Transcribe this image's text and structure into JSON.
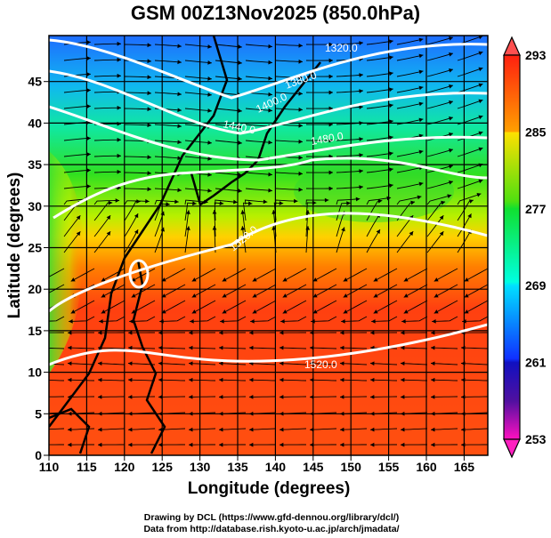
{
  "title": "GSM 00Z13Nov2025 (850.0hPa)",
  "x_axis": {
    "label": "Longitude (degrees)",
    "ticks": [
      "110",
      "115",
      "120",
      "125",
      "130",
      "135",
      "140",
      "145",
      "150",
      "155",
      "160",
      "165"
    ]
  },
  "y_axis": {
    "label": "Latitude  (degrees)",
    "ticks": [
      "0",
      "5",
      "10",
      "15",
      "20",
      "25",
      "30",
      "35",
      "40",
      "45"
    ]
  },
  "colorbar": {
    "ticks": [
      "293",
      "285",
      "277",
      "269",
      "261",
      "253"
    ],
    "min": 253,
    "max": 293,
    "colors": [
      "#ff10c0",
      "#7010a0",
      "#1010c0",
      "#1060ff",
      "#00e0ff",
      "#00f0b0",
      "#10e020",
      "#a0f000",
      "#ffe000",
      "#ff8000",
      "#ff2010"
    ]
  },
  "contour_labels": [
    "1320.0",
    "1380.0",
    "1400.0",
    "1440.0",
    "1480.0",
    "1520.0",
    "1520.0"
  ],
  "footer": {
    "line1": "Drawing by DCL (https://www.gfd-dennou.org/library/dcl/)",
    "line2": "Data from http://database.rish.kyoto-u.ac.jp/arch/jmadata/"
  }
}
